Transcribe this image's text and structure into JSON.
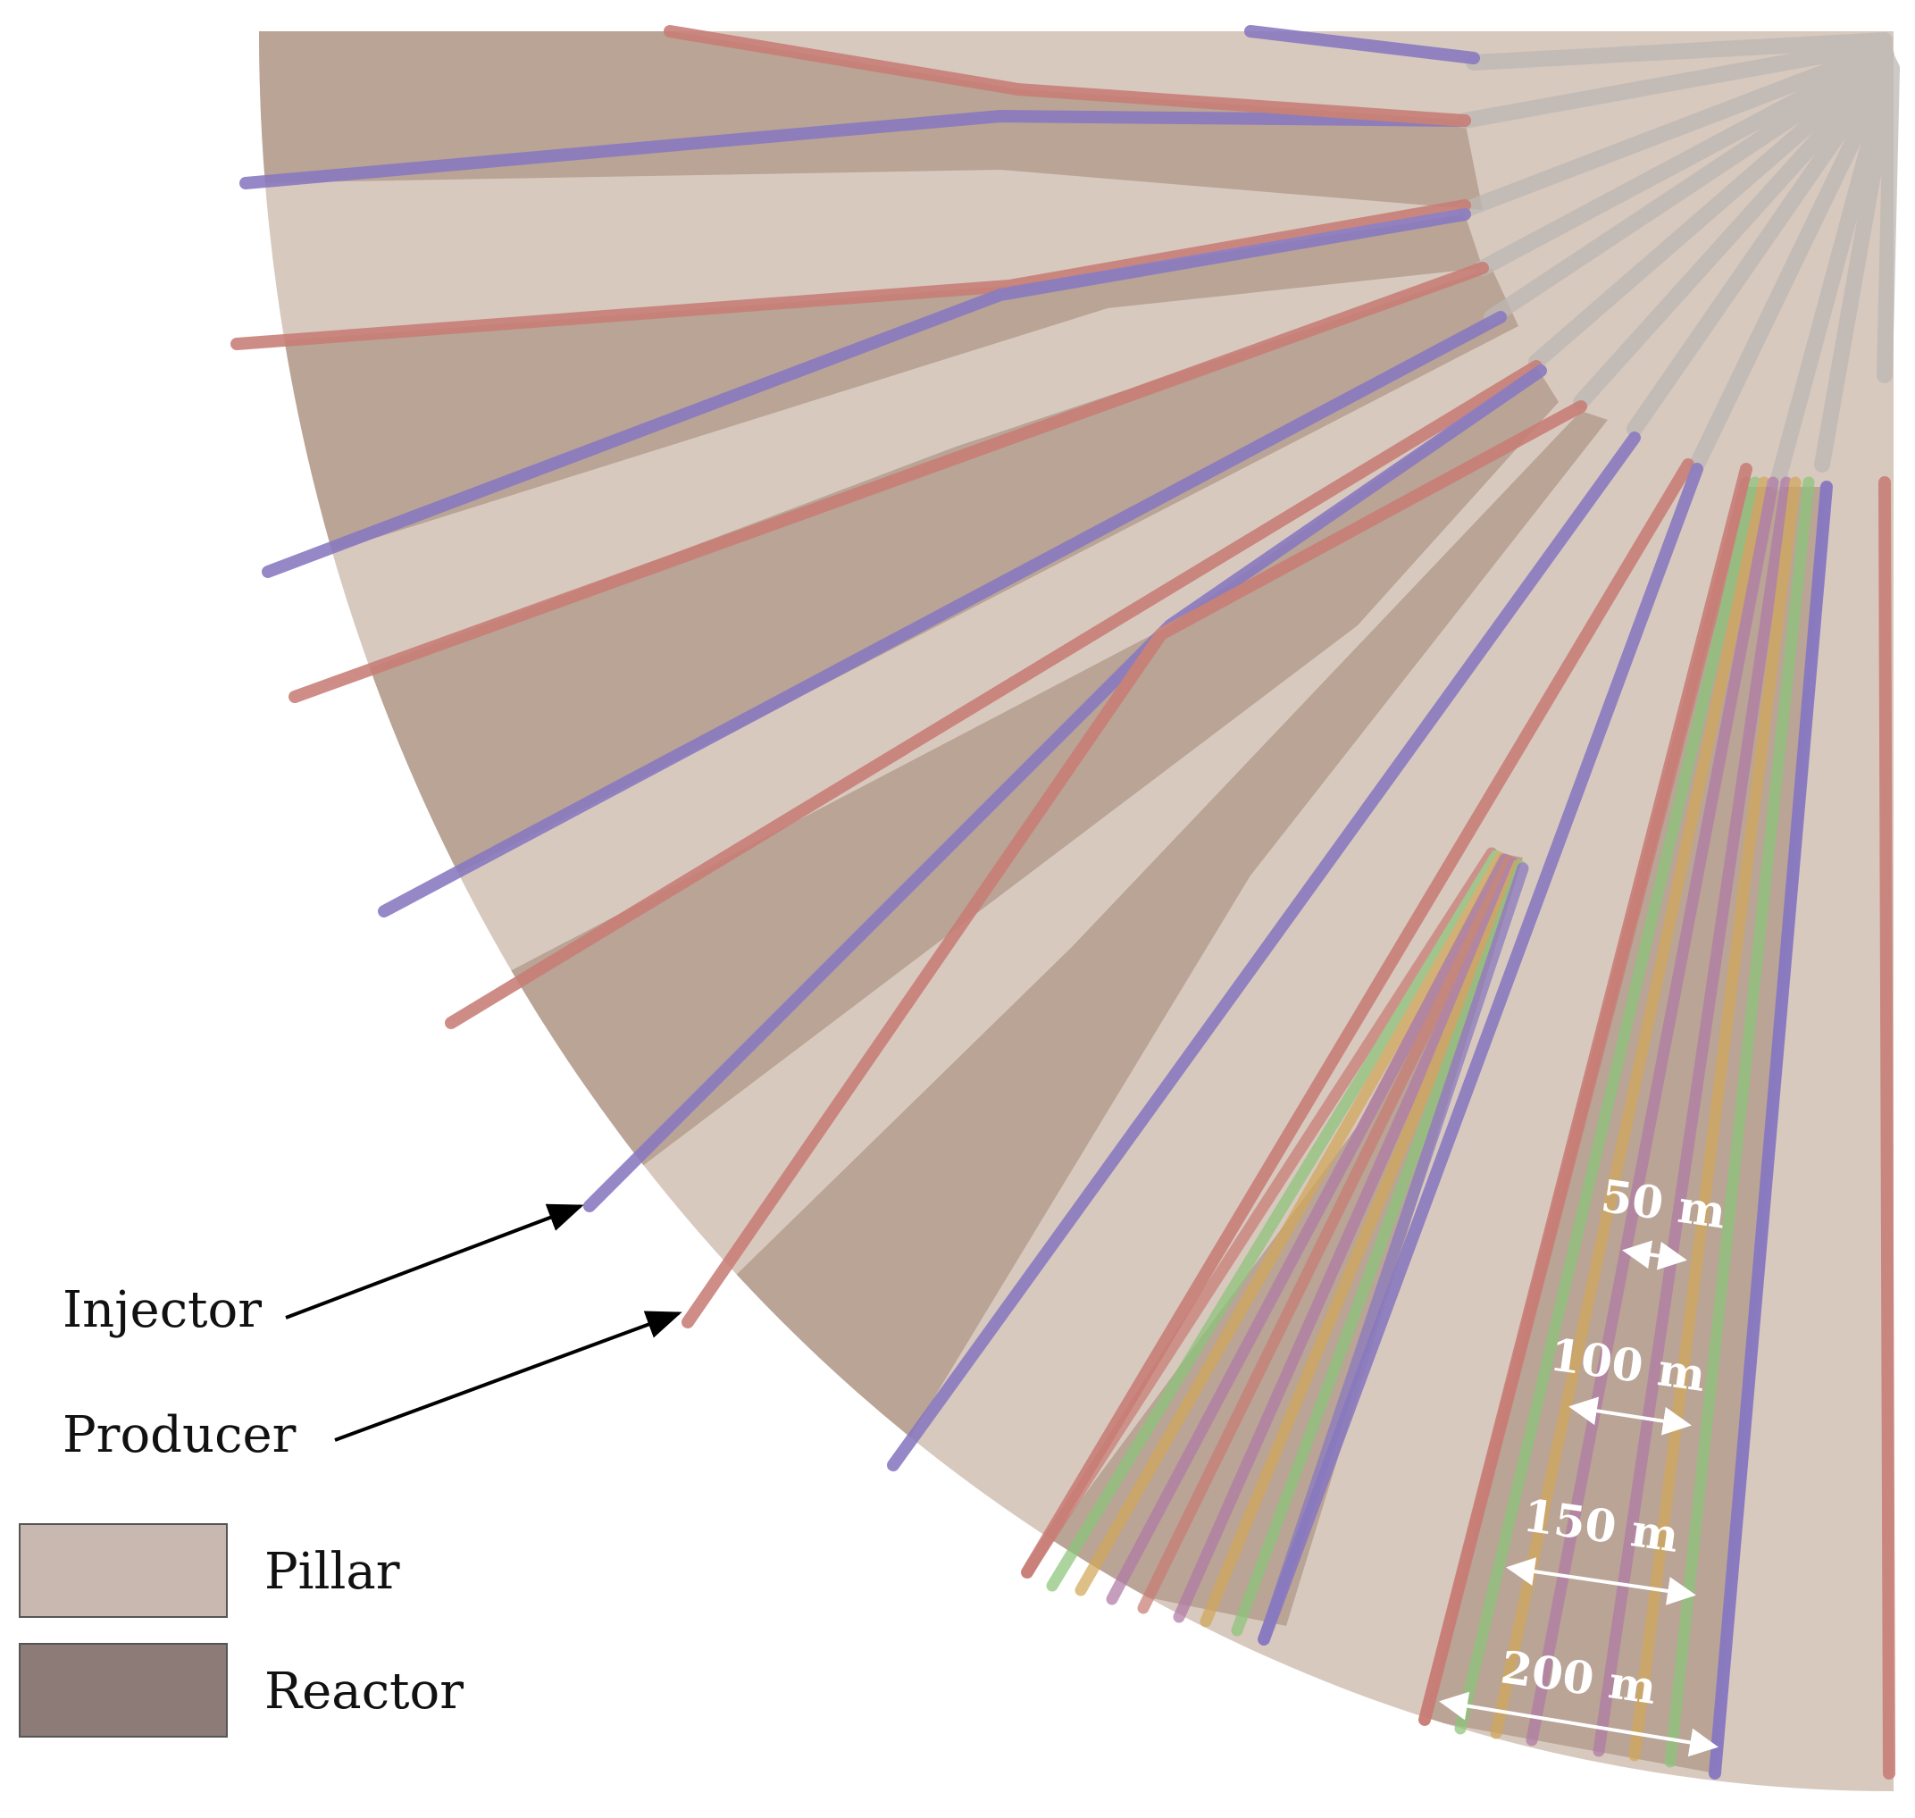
{
  "annotations": {
    "injector_label": "Injector",
    "producer_label": "Producer"
  },
  "legend": {
    "items": [
      {
        "label": "Pillar",
        "color": "#c9b8af"
      },
      {
        "label": "Reactor",
        "color": "#8c7b76"
      }
    ]
  },
  "scale_labels": [
    "50 m",
    "100 m",
    "150 m",
    "200 m"
  ],
  "colors": {
    "pillar": "#d8c9bf",
    "reactor": "#b7a193",
    "injector": "#8878c0",
    "producer": "#c87d76",
    "green_well": "#8cc47a",
    "yellow_well": "#d2a85a",
    "purple_well": "#b07aa6",
    "header_pipe": "#b9b5b2"
  },
  "icons": [
    "arrow-right-up-icon"
  ]
}
